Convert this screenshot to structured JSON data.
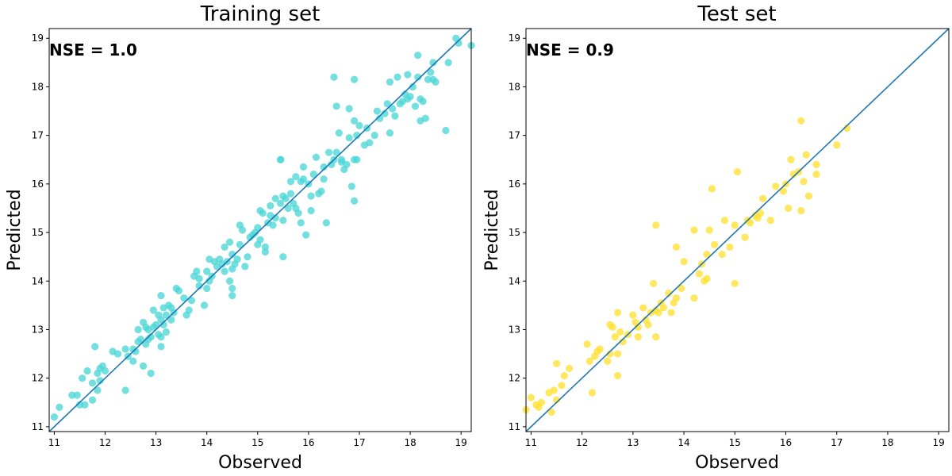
{
  "chart_data": [
    {
      "type": "scatter",
      "title": "Training set",
      "xlabel": "Observed",
      "ylabel": "Predicted",
      "annotation": "NSE = 1.0",
      "xlim": [
        10.9,
        19.2
      ],
      "ylim": [
        10.9,
        19.2
      ],
      "xticks": [
        "11",
        "12",
        "13",
        "14",
        "15",
        "16",
        "17",
        "18",
        "19"
      ],
      "yticks": [
        "11",
        "12",
        "13",
        "14",
        "15",
        "16",
        "17",
        "18",
        "19"
      ],
      "grid": false,
      "reference_line": "y = x",
      "line_color": "#1f77b4",
      "point_color": "#4dd6d6",
      "points": [
        [
          11.0,
          11.2
        ],
        [
          11.1,
          11.4
        ],
        [
          11.35,
          11.65
        ],
        [
          11.45,
          11.65
        ],
        [
          11.5,
          11.45
        ],
        [
          11.55,
          12.0
        ],
        [
          11.6,
          11.45
        ],
        [
          11.65,
          12.15
        ],
        [
          11.75,
          11.9
        ],
        [
          11.75,
          11.55
        ],
        [
          11.8,
          12.65
        ],
        [
          11.85,
          12.1
        ],
        [
          11.85,
          11.75
        ],
        [
          11.9,
          12.2
        ],
        [
          11.9,
          11.95
        ],
        [
          11.95,
          12.25
        ],
        [
          12.0,
          12.15
        ],
        [
          12.15,
          12.55
        ],
        [
          12.25,
          12.5
        ],
        [
          12.4,
          11.75
        ],
        [
          12.4,
          12.6
        ],
        [
          12.45,
          12.45
        ],
        [
          12.55,
          12.6
        ],
        [
          12.55,
          12.35
        ],
        [
          12.6,
          12.55
        ],
        [
          12.65,
          12.75
        ],
        [
          12.7,
          12.8
        ],
        [
          12.75,
          12.25
        ],
        [
          12.8,
          12.7
        ],
        [
          12.85,
          12.8
        ],
        [
          12.9,
          12.85
        ],
        [
          12.9,
          12.1
        ],
        [
          12.65,
          13.0
        ],
        [
          12.75,
          13.15
        ],
        [
          12.8,
          13.05
        ],
        [
          12.85,
          13.0
        ],
        [
          12.95,
          13.05
        ],
        [
          12.95,
          13.4
        ],
        [
          13.0,
          13.1
        ],
        [
          13.05,
          12.9
        ],
        [
          13.05,
          13.3
        ],
        [
          13.1,
          13.2
        ],
        [
          13.1,
          12.85
        ],
        [
          13.1,
          12.65
        ],
        [
          13.1,
          13.7
        ],
        [
          13.15,
          13.45
        ],
        [
          13.15,
          13.1
        ],
        [
          13.2,
          13.3
        ],
        [
          13.2,
          12.95
        ],
        [
          13.25,
          13.5
        ],
        [
          13.3,
          13.2
        ],
        [
          13.3,
          13.45
        ],
        [
          13.35,
          13.35
        ],
        [
          13.4,
          13.85
        ],
        [
          13.45,
          13.8
        ],
        [
          13.55,
          13.65
        ],
        [
          13.6,
          13.3
        ],
        [
          13.65,
          13.4
        ],
        [
          13.7,
          13.6
        ],
        [
          13.75,
          14.1
        ],
        [
          13.8,
          14.2
        ],
        [
          13.85,
          14.05
        ],
        [
          13.95,
          13.5
        ],
        [
          14.0,
          13.85
        ],
        [
          14.05,
          14.0
        ],
        [
          14.05,
          14.45
        ],
        [
          14.1,
          14.1
        ],
        [
          14.15,
          14.4
        ],
        [
          14.2,
          14.3
        ],
        [
          14.25,
          14.45
        ],
        [
          14.3,
          14.35
        ],
        [
          14.35,
          14.2
        ],
        [
          14.4,
          14.4
        ],
        [
          14.45,
          14.8
        ],
        [
          14.5,
          14.55
        ],
        [
          14.5,
          14.25
        ],
        [
          14.5,
          13.85
        ],
        [
          14.5,
          13.7
        ],
        [
          14.55,
          14.35
        ],
        [
          14.6,
          14.45
        ],
        [
          14.65,
          14.75
        ],
        [
          14.65,
          15.15
        ],
        [
          14.7,
          15.05
        ],
        [
          14.75,
          14.3
        ],
        [
          14.8,
          14.5
        ],
        [
          14.85,
          14.9
        ],
        [
          14.9,
          14.95
        ],
        [
          14.95,
          15.0
        ],
        [
          15.0,
          15.1
        ],
        [
          15.0,
          14.75
        ],
        [
          15.05,
          15.45
        ],
        [
          15.05,
          14.85
        ],
        [
          15.1,
          15.4
        ],
        [
          15.15,
          14.6
        ],
        [
          15.15,
          14.7
        ],
        [
          15.2,
          15.2
        ],
        [
          15.25,
          15.35
        ],
        [
          15.3,
          15.15
        ],
        [
          15.35,
          15.3
        ],
        [
          15.45,
          15.6
        ],
        [
          15.45,
          16.5
        ],
        [
          15.5,
          15.75
        ],
        [
          15.5,
          15.25
        ],
        [
          15.5,
          14.5
        ],
        [
          15.55,
          15.7
        ],
        [
          15.6,
          15.5
        ],
        [
          15.65,
          16.05
        ],
        [
          15.7,
          15.6
        ],
        [
          15.75,
          15.5
        ],
        [
          15.8,
          15.4
        ],
        [
          15.85,
          16.05
        ],
        [
          15.85,
          15.2
        ],
        [
          15.9,
          16.1
        ],
        [
          15.95,
          14.95
        ],
        [
          16.0,
          16.0
        ],
        [
          16.05,
          15.75
        ],
        [
          16.05,
          15.45
        ],
        [
          16.1,
          16.2
        ],
        [
          16.15,
          16.55
        ],
        [
          16.2,
          15.8
        ],
        [
          16.25,
          15.85
        ],
        [
          16.3,
          16.1
        ],
        [
          16.35,
          15.2
        ],
        [
          16.4,
          16.65
        ],
        [
          16.45,
          16.4
        ],
        [
          16.5,
          16.5
        ],
        [
          16.55,
          16.65
        ],
        [
          16.55,
          17.6
        ],
        [
          16.6,
          17.05
        ],
        [
          16.65,
          16.5
        ],
        [
          16.65,
          16.45
        ],
        [
          16.7,
          16.3
        ],
        [
          16.75,
          16.4
        ],
        [
          16.8,
          16.95
        ],
        [
          16.8,
          17.55
        ],
        [
          16.85,
          15.95
        ],
        [
          16.9,
          17.3
        ],
        [
          16.9,
          16.5
        ],
        [
          16.9,
          15.65
        ],
        [
          16.95,
          17.0
        ],
        [
          17.0,
          17.2
        ],
        [
          17.1,
          16.8
        ],
        [
          17.15,
          17.15
        ],
        [
          17.2,
          16.85
        ],
        [
          17.3,
          17.0
        ],
        [
          17.35,
          17.5
        ],
        [
          17.4,
          17.35
        ],
        [
          17.5,
          17.45
        ],
        [
          17.55,
          17.65
        ],
        [
          17.6,
          17.05
        ],
        [
          17.6,
          18.1
        ],
        [
          17.65,
          17.55
        ],
        [
          17.7,
          17.4
        ],
        [
          17.75,
          18.2
        ],
        [
          17.8,
          17.65
        ],
        [
          17.85,
          17.7
        ],
        [
          17.9,
          17.85
        ],
        [
          17.95,
          18.25
        ],
        [
          17.95,
          17.75
        ],
        [
          18.0,
          17.8
        ],
        [
          18.05,
          18.0
        ],
        [
          18.1,
          17.6
        ],
        [
          18.15,
          18.2
        ],
        [
          18.15,
          18.65
        ],
        [
          18.2,
          17.3
        ],
        [
          18.2,
          17.75
        ],
        [
          18.25,
          17.7
        ],
        [
          18.3,
          17.35
        ],
        [
          18.35,
          18.15
        ],
        [
          18.4,
          18.3
        ],
        [
          18.45,
          18.5
        ],
        [
          18.45,
          18.15
        ],
        [
          18.5,
          18.1
        ],
        [
          18.7,
          17.1
        ],
        [
          18.75,
          18.5
        ],
        [
          18.9,
          19.0
        ],
        [
          18.95,
          18.9
        ],
        [
          19.2,
          18.85
        ],
        [
          16.5,
          18.2
        ],
        [
          16.9,
          18.15
        ],
        [
          15.45,
          16.5
        ],
        [
          16.95,
          16.5
        ],
        [
          16.3,
          16.35
        ],
        [
          15.75,
          16.15
        ],
        [
          14.35,
          14.7
        ],
        [
          15.35,
          15.7
        ],
        [
          15.9,
          16.35
        ],
        [
          14.45,
          14.0
        ],
        [
          13.85,
          13.9
        ],
        [
          15.25,
          15.55
        ],
        [
          15.65,
          15.8
        ],
        [
          14.0,
          14.2
        ]
      ]
    },
    {
      "type": "scatter",
      "title": "Test set",
      "xlabel": "Observed",
      "ylabel": "Predicted",
      "annotation": "NSE = 0.9",
      "xlim": [
        10.9,
        19.2
      ],
      "ylim": [
        10.9,
        19.2
      ],
      "xticks": [
        "11",
        "12",
        "13",
        "14",
        "15",
        "16",
        "17",
        "18",
        "19"
      ],
      "yticks": [
        "11",
        "12",
        "13",
        "14",
        "15",
        "16",
        "17",
        "18",
        "19"
      ],
      "grid": false,
      "reference_line": "y = x",
      "line_color": "#1f77b4",
      "point_color": "#ffe033",
      "points": [
        [
          10.9,
          11.35
        ],
        [
          11.0,
          11.6
        ],
        [
          11.1,
          11.45
        ],
        [
          11.15,
          11.4
        ],
        [
          11.2,
          11.5
        ],
        [
          11.35,
          11.7
        ],
        [
          11.4,
          11.3
        ],
        [
          11.45,
          11.75
        ],
        [
          11.5,
          11.55
        ],
        [
          11.5,
          12.3
        ],
        [
          11.6,
          11.85
        ],
        [
          11.65,
          12.05
        ],
        [
          11.75,
          12.2
        ],
        [
          12.1,
          12.7
        ],
        [
          12.15,
          12.35
        ],
        [
          12.2,
          11.7
        ],
        [
          12.25,
          12.45
        ],
        [
          12.3,
          12.55
        ],
        [
          12.35,
          12.6
        ],
        [
          12.5,
          12.35
        ],
        [
          12.55,
          12.5
        ],
        [
          12.55,
          13.1
        ],
        [
          12.6,
          13.05
        ],
        [
          12.65,
          12.85
        ],
        [
          12.7,
          12.5
        ],
        [
          12.7,
          13.35
        ],
        [
          12.75,
          12.95
        ],
        [
          12.8,
          12.75
        ],
        [
          12.9,
          12.9
        ],
        [
          13.0,
          13.3
        ],
        [
          13.05,
          13.15
        ],
        [
          13.1,
          12.85
        ],
        [
          13.2,
          13.45
        ],
        [
          13.25,
          13.2
        ],
        [
          13.3,
          13.1
        ],
        [
          13.35,
          13.35
        ],
        [
          13.4,
          13.95
        ],
        [
          13.45,
          13.4
        ],
        [
          13.45,
          15.15
        ],
        [
          13.5,
          13.35
        ],
        [
          13.55,
          13.55
        ],
        [
          13.6,
          13.45
        ],
        [
          13.7,
          13.75
        ],
        [
          13.75,
          13.35
        ],
        [
          13.8,
          13.55
        ],
        [
          13.85,
          13.65
        ],
        [
          13.85,
          14.7
        ],
        [
          13.95,
          13.85
        ],
        [
          14.0,
          14.4
        ],
        [
          14.2,
          13.65
        ],
        [
          14.2,
          15.05
        ],
        [
          14.3,
          14.15
        ],
        [
          14.35,
          14.35
        ],
        [
          14.4,
          14.0
        ],
        [
          14.45,
          14.55
        ],
        [
          14.5,
          15.05
        ],
        [
          14.55,
          15.9
        ],
        [
          14.6,
          14.75
        ],
        [
          14.75,
          14.55
        ],
        [
          14.8,
          15.25
        ],
        [
          14.9,
          14.7
        ],
        [
          15.0,
          15.15
        ],
        [
          15.05,
          16.25
        ],
        [
          15.2,
          14.9
        ],
        [
          15.25,
          15.25
        ],
        [
          15.3,
          15.2
        ],
        [
          15.4,
          15.35
        ],
        [
          15.5,
          15.4
        ],
        [
          15.55,
          15.7
        ],
        [
          15.7,
          15.25
        ],
        [
          15.8,
          15.95
        ],
        [
          15.95,
          15.85
        ],
        [
          16.0,
          16.0
        ],
        [
          16.05,
          15.5
        ],
        [
          16.1,
          16.5
        ],
        [
          16.15,
          16.2
        ],
        [
          16.25,
          16.25
        ],
        [
          16.3,
          15.45
        ],
        [
          16.3,
          17.3
        ],
        [
          16.35,
          16.05
        ],
        [
          16.4,
          16.6
        ],
        [
          16.45,
          15.75
        ],
        [
          16.6,
          16.2
        ],
        [
          16.6,
          16.4
        ],
        [
          17.0,
          16.8
        ],
        [
          17.2,
          17.15
        ],
        [
          13.1,
          13.05
        ],
        [
          15.45,
          15.3
        ],
        [
          15.0,
          13.95
        ],
        [
          12.7,
          12.05
        ],
        [
          13.45,
          12.85
        ],
        [
          14.45,
          14.05
        ]
      ]
    }
  ]
}
